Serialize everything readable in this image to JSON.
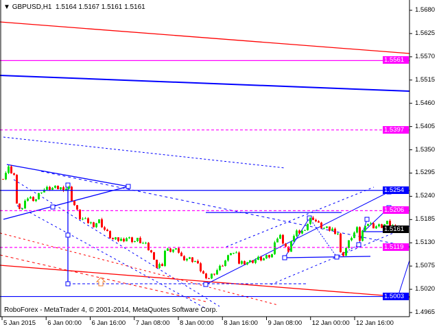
{
  "header": {
    "symbol": "GBPUSD,H1",
    "ohlc": "1.5164 1.5167 1.5161 1.5161"
  },
  "footer": "RoboForex - MetaTrader 4, © 2001-2014, MetaQuotes Software Corp.",
  "colors": {
    "up": "#00e000",
    "down": "#ff0000",
    "trend_blue": "#0000ff",
    "level_magenta": "#ff00ff",
    "channel_red": "#ff0000",
    "current_price_bg": "#000000"
  },
  "chart_data": {
    "type": "candlestick",
    "symbol": "GBPUSD",
    "timeframe": "H1",
    "ylim": [
      1.4965,
      1.568
    ],
    "y_ticks": [
      "1.5680",
      "1.5625",
      "1.5570",
      "1.5515",
      "1.5460",
      "1.5405",
      "1.5350",
      "1.5295",
      "1.5240",
      "1.5185",
      "1.5130",
      "1.5075",
      "1.5020",
      "1.4965"
    ],
    "x_ticks": [
      "5 Jan 2015",
      "6 Jan 00:00",
      "6 Jan 16:00",
      "7 Jan 08:00",
      "8 Jan 00:00",
      "8 Jan 16:00",
      "9 Jan 08:00",
      "12 Jan 00:00",
      "12 Jan 16:00"
    ],
    "grid": false,
    "close_path": [
      [
        "5 Jan 08:00",
        1.5286
      ],
      [
        "5 Jan 10:00",
        1.5307
      ],
      [
        "5 Jan 12:00",
        1.5291
      ],
      [
        "5 Jan 13:00",
        1.5218
      ],
      [
        "5 Jan 15:00",
        1.521
      ],
      [
        "5 Jan 17:00",
        1.5237
      ],
      [
        "5 Jan 20:00",
        1.5234
      ],
      [
        "5 Jan 22:00",
        1.5254
      ],
      [
        "6 Jan 01:00",
        1.5259
      ],
      [
        "6 Jan 04:00",
        1.5259
      ],
      [
        "6 Jan 08:00",
        1.5259
      ],
      [
        "6 Jan 09:00",
        1.5234
      ],
      [
        "6 Jan 12:00",
        1.5189
      ],
      [
        "6 Jan 14:00",
        1.5182
      ],
      [
        "6 Jan 17:00",
        1.5173
      ],
      [
        "6 Jan 19:00",
        1.5182
      ],
      [
        "6 Jan 21:00",
        1.5161
      ],
      [
        "6 Jan 23:00",
        1.5145
      ],
      [
        "7 Jan 00:00",
        1.5137
      ],
      [
        "7 Jan 03:00",
        1.5137
      ],
      [
        "7 Jan 05:00",
        1.5142
      ],
      [
        "7 Jan 08:00",
        1.5134
      ],
      [
        "7 Jan 09:00",
        1.5137
      ],
      [
        "7 Jan 12:00",
        1.5124
      ],
      [
        "7 Jan 15:00",
        1.5096
      ],
      [
        "7 Jan 16:00",
        1.5072
      ],
      [
        "7 Jan 18:00",
        1.508
      ],
      [
        "7 Jan 19:00",
        1.5111
      ],
      [
        "7 Jan 22:00",
        1.5113
      ],
      [
        "8 Jan 00:00",
        1.5109
      ],
      [
        "8 Jan 01:00",
        1.5096
      ],
      [
        "8 Jan 04:00",
        1.5092
      ],
      [
        "8 Jan 06:00",
        1.5087
      ],
      [
        "8 Jan 09:00",
        1.5056
      ],
      [
        "8 Jan 10:00",
        1.504
      ],
      [
        "8 Jan 11:00",
        1.5048
      ],
      [
        "8 Jan 13:00",
        1.5061
      ],
      [
        "8 Jan 15:00",
        1.5072
      ],
      [
        "8 Jan 18:00",
        1.5096
      ],
      [
        "8 Jan 19:00",
        1.5109
      ],
      [
        "8 Jan 21:00",
        1.5101
      ],
      [
        "8 Jan 22:00",
        1.5083
      ],
      [
        "9 Jan 00:00",
        1.5085
      ],
      [
        "9 Jan 02:00",
        1.5085
      ],
      [
        "9 Jan 05:00",
        1.5092
      ],
      [
        "9 Jan 07:00",
        1.5092
      ],
      [
        "9 Jan 10:00",
        1.5101
      ],
      [
        "9 Jan 11:00",
        1.5137
      ],
      [
        "9 Jan 13:00",
        1.5145
      ],
      [
        "9 Jan 15:00",
        1.5121
      ],
      [
        "9 Jan 16:00",
        1.5104
      ],
      [
        "9 Jan 17:00",
        1.5137
      ],
      [
        "9 Jan 19:00",
        1.5153
      ],
      [
        "9 Jan 21:00",
        1.5156
      ],
      [
        "12 Jan 00:00",
        1.5186
      ],
      [
        "12 Jan 01:00",
        1.5189
      ],
      [
        "12 Jan 03:00",
        1.5173
      ],
      [
        "12 Jan 05:00",
        1.5164
      ],
      [
        "12 Jan 07:00",
        1.5161
      ],
      [
        "12 Jan 08:00",
        1.5161
      ],
      [
        "12 Jan 10:00",
        1.5153
      ],
      [
        "12 Jan 11:00",
        1.5104
      ],
      [
        "12 Jan 12:00",
        1.5104
      ],
      [
        "12 Jan 15:00",
        1.5145
      ],
      [
        "12 Jan 17:00",
        1.5161
      ],
      [
        "12 Jan 18:00",
        1.5137
      ],
      [
        "12 Jan 20:00",
        1.5176
      ],
      [
        "12 Jan 21:00",
        1.5176
      ],
      [
        "12 Jan 23:00",
        1.5169
      ],
      [
        "13 Jan 02:00",
        1.5169
      ],
      [
        "13 Jan 04:00",
        1.5176
      ],
      [
        "13 Jan 06:00",
        1.5169
      ],
      [
        "13 Jan 07:00",
        1.5161
      ]
    ],
    "levels": [
      {
        "price": "1.5561",
        "style": "solid",
        "color": "#ff00ff"
      },
      {
        "price": "1.5397",
        "style": "dashed",
        "color": "#ff00ff"
      },
      {
        "price": "1.5254",
        "style": "solid",
        "color": "#0000ff"
      },
      {
        "price": "1.5206",
        "style": "dashed",
        "color": "#ff00ff"
      },
      {
        "price": "1.5119",
        "style": "dashed",
        "color": "#ff00ff"
      },
      {
        "price": "1.5003",
        "style": "solid",
        "color": "#0000ff"
      }
    ],
    "current_price": "1.5161"
  }
}
